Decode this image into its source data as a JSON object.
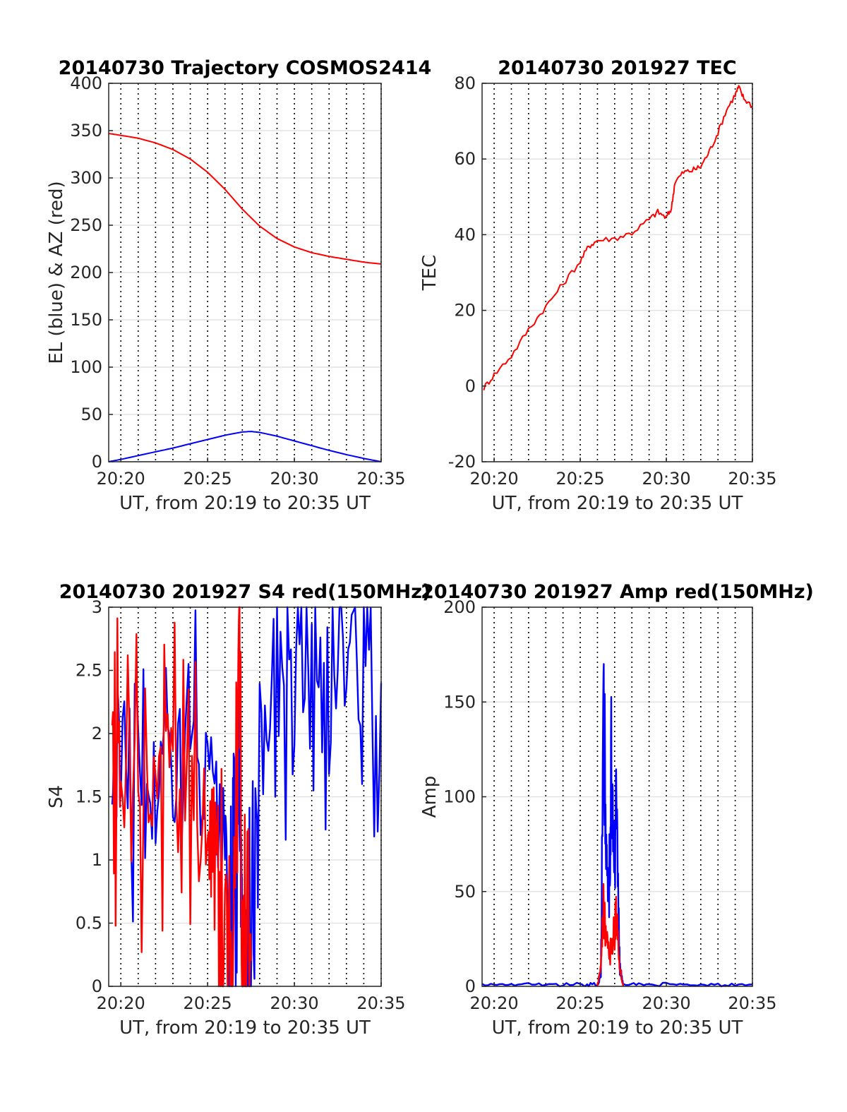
{
  "figure": {
    "series_colors": {
      "red": "#ff0000",
      "blue": "#0000ff"
    },
    "grid": {
      "major_dotted_vertical": true,
      "horizontal_solid_light": true
    }
  },
  "chart_data": [
    {
      "id": "trajectory",
      "type": "line",
      "title": "20140730 Trajectory COSMOS2414",
      "xlabel": "UT, from 20:19 to 20:35 UT",
      "ylabel": "EL (blue) & AZ (red)",
      "xlim": [
        19.3,
        35.0
      ],
      "ylim": [
        0,
        400
      ],
      "x_ticks": [
        20,
        25,
        30,
        35
      ],
      "x_tick_labels": [
        "20:20",
        "20:25",
        "20:30",
        "20:35"
      ],
      "y_ticks": [
        0,
        50,
        100,
        150,
        200,
        250,
        300,
        350,
        400
      ],
      "y_tick_labels": [
        "0",
        "50",
        "100",
        "150",
        "200",
        "250",
        "300",
        "350",
        "400"
      ],
      "series": [
        {
          "color": "#ff0000",
          "x": [
            19.3,
            20,
            21,
            22,
            23,
            24,
            25,
            26,
            27,
            28,
            29,
            30,
            31,
            32,
            33,
            34,
            35
          ],
          "values": [
            347,
            345,
            342,
            337,
            330,
            320,
            306,
            288,
            267,
            249,
            236,
            227,
            221,
            217,
            214,
            211,
            209
          ]
        },
        {
          "color": "#0000ff",
          "x": [
            19.3,
            20,
            21,
            22,
            23,
            24,
            25,
            26,
            27,
            27.5,
            28,
            29,
            30,
            31,
            32,
            33,
            34,
            35
          ],
          "values": [
            0,
            2.5,
            6.5,
            10.5,
            14.5,
            19,
            23.5,
            28,
            31.5,
            32,
            31,
            27,
            22,
            17,
            12,
            7.5,
            3.5,
            0
          ]
        }
      ]
    },
    {
      "id": "tec",
      "type": "line",
      "title": "20140730 201927 TEC",
      "xlabel": "UT, from 20:19 to 20:35 UT",
      "ylabel": "TEC",
      "xlim": [
        19.3,
        35.0
      ],
      "ylim": [
        -20,
        80
      ],
      "x_ticks": [
        20,
        25,
        30,
        35
      ],
      "x_tick_labels": [
        "20:20",
        "20:25",
        "20:30",
        "20:35"
      ],
      "y_ticks": [
        -20,
        0,
        20,
        40,
        60,
        80
      ],
      "y_tick_labels": [
        "-20",
        "0",
        "20",
        "40",
        "60",
        "80"
      ],
      "series": [
        {
          "color": "#ff0000",
          "x": [
            19.4,
            20,
            21,
            22,
            23,
            24,
            25,
            25.5,
            26,
            27,
            28,
            29,
            29.5,
            30,
            30.3,
            30.5,
            31,
            31.5,
            32,
            32.5,
            33,
            33.5,
            34,
            34.2,
            34.5,
            35
          ],
          "values": [
            -0.5,
            3,
            8,
            15,
            21,
            27,
            33,
            37,
            38.5,
            39,
            40.5,
            44,
            46,
            44.5,
            47,
            54,
            56.5,
            57,
            58,
            62,
            67,
            73,
            77,
            79,
            76,
            74
          ]
        }
      ]
    },
    {
      "id": "s4",
      "type": "line",
      "title": "20140730 201927 S4 red(150MHz)",
      "xlabel": "UT, from 20:19 to 20:35 UT",
      "ylabel": "S4",
      "xlim": [
        19.3,
        35.0
      ],
      "ylim": [
        0,
        3
      ],
      "x_ticks": [
        20,
        25,
        30,
        35
      ],
      "x_tick_labels": [
        "20:20",
        "20:25",
        "20:30",
        "20:35"
      ],
      "y_ticks": [
        0,
        0.5,
        1,
        1.5,
        2,
        2.5,
        3
      ],
      "y_tick_labels": [
        "0",
        "0.5",
        "1",
        "1.5",
        "2",
        "2.5",
        "3"
      ],
      "series": [
        {
          "color": "#0000ff",
          "x": [
            19.5,
            20,
            21,
            22,
            23,
            24,
            25,
            26,
            26.3,
            26.5,
            26.8,
            27,
            27.2,
            27.5,
            28,
            29,
            30,
            31,
            32,
            33,
            34,
            35
          ],
          "values": [
            1.8,
            1.9,
            1.7,
            1.6,
            1.8,
            1.9,
            1.6,
            1.0,
            0.2,
            0.6,
            1.8,
            0.4,
            0.2,
            0.1,
            2.2,
            2.5,
            2.4,
            2.6,
            2.3,
            2.7,
            2.5,
            2.4
          ]
        },
        {
          "color": "#ff0000",
          "x": [
            19.5,
            20,
            21,
            22,
            23,
            24,
            25,
            25.5,
            26,
            26.5,
            26.8,
            27,
            27.2,
            27.5
          ],
          "values": [
            1.7,
            1.6,
            1.5,
            1.6,
            1.7,
            1.4,
            1.2,
            1.0,
            0.3,
            0.2,
            2.9,
            0.3,
            0.2,
            0.2
          ]
        }
      ]
    },
    {
      "id": "amp",
      "type": "line",
      "title": "20140730 201927 Amp red(150MHz)",
      "xlabel": "UT, from 20:19 to 20:35 UT",
      "ylabel": "Amp",
      "xlim": [
        19.3,
        35.0
      ],
      "ylim": [
        0,
        200
      ],
      "x_ticks": [
        20,
        25,
        30,
        35
      ],
      "x_tick_labels": [
        "20:20",
        "20:25",
        "20:30",
        "20:35"
      ],
      "y_ticks": [
        0,
        50,
        100,
        150,
        200
      ],
      "y_tick_labels": [
        "0",
        "50",
        "100",
        "150",
        "200"
      ],
      "series": [
        {
          "color": "#0000ff",
          "x": [
            19.3,
            21,
            23,
            25,
            26.0,
            26.2,
            26.35,
            26.5,
            26.65,
            26.8,
            26.95,
            27.1,
            27.3,
            27.5,
            29,
            31,
            33,
            35
          ],
          "values": [
            1,
            1,
            1,
            1,
            1,
            5,
            157,
            80,
            40,
            120,
            60,
            90,
            10,
            1,
            1,
            1,
            1,
            1
          ]
        },
        {
          "color": "#ff0000",
          "x": [
            26.0,
            26.2,
            26.35,
            26.5,
            26.7,
            26.9,
            27.1,
            27.3,
            27.5
          ],
          "values": [
            0,
            10,
            45,
            25,
            15,
            30,
            35,
            10,
            0
          ]
        }
      ]
    }
  ]
}
